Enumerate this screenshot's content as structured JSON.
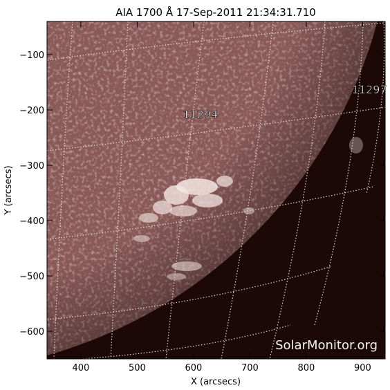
{
  "title": "AIA 1700 Å 17-Sep-2011 21:34:31.710",
  "axes": {
    "xlabel": "X (arcsecs)",
    "ylabel": "Y (arcsecs)",
    "xlim": [
      340,
      940
    ],
    "ylim": [
      -650,
      -40
    ],
    "xticks": [
      400,
      500,
      600,
      700,
      800,
      900
    ],
    "yticks": [
      -100,
      -200,
      -300,
      -400,
      -500,
      -600
    ]
  },
  "regions": [
    {
      "label": "11294",
      "x": 612,
      "y": -215
    },
    {
      "label": "11297",
      "x": 912,
      "y": -170
    }
  ],
  "watermark": "SolarMonitor.org",
  "colors": {
    "disk": "#8a5a58",
    "off_disk": "#1c0807",
    "grid": "#e8d8d4",
    "bright": "#f4e6e2"
  }
}
